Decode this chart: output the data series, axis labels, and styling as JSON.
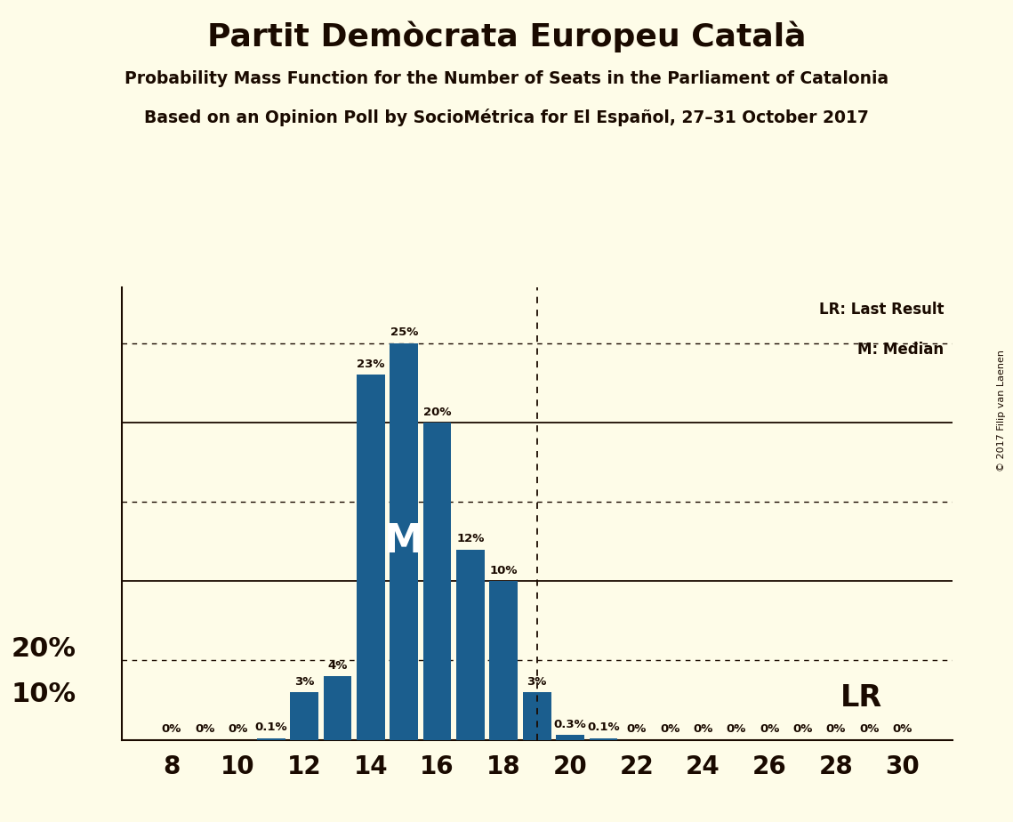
{
  "title": "Partit Demòcrata Europeu Català",
  "subtitle1": "Probability Mass Function for the Number of Seats in the Parliament of Catalonia",
  "subtitle2": "Based on an Opinion Poll by SocioMétrica for El Español, 27–31 October 2017",
  "copyright": "© 2017 Filip van Laenen",
  "bar_color": "#1b5e8e",
  "background_color": "#fefce8",
  "axis_color": "#1a0a00",
  "seats": [
    8,
    9,
    10,
    11,
    12,
    13,
    14,
    15,
    16,
    17,
    18,
    19,
    20,
    21,
    22,
    23,
    24,
    25,
    26,
    27,
    28,
    29,
    30
  ],
  "probabilities": [
    0.0,
    0.0,
    0.0,
    0.001,
    0.03,
    0.04,
    0.23,
    0.25,
    0.2,
    0.12,
    0.1,
    0.03,
    0.003,
    0.001,
    0.0,
    0.0,
    0.0,
    0.0,
    0.0,
    0.0,
    0.0,
    0.0,
    0.0
  ],
  "labels": [
    "0%",
    "0%",
    "0%",
    "0.1%",
    "3%",
    "4%",
    "23%",
    "25%",
    "20%",
    "12%",
    "10%",
    "3%",
    "0.3%",
    "0.1%",
    "0%",
    "0%",
    "0%",
    "0%",
    "0%",
    "0%",
    "0%",
    "0%",
    "0%"
  ],
  "median_seat": 15,
  "lr_seat": 19,
  "solid_yticks": [
    0.1,
    0.2
  ],
  "dotted_yticks": [
    0.05,
    0.15,
    0.25
  ],
  "ylim": [
    0,
    0.285
  ],
  "legend_lr": "LR: Last Result",
  "legend_m": "M: Median",
  "ylabel_20": "20%",
  "ylabel_10": "10%",
  "bar_width": 0.85
}
